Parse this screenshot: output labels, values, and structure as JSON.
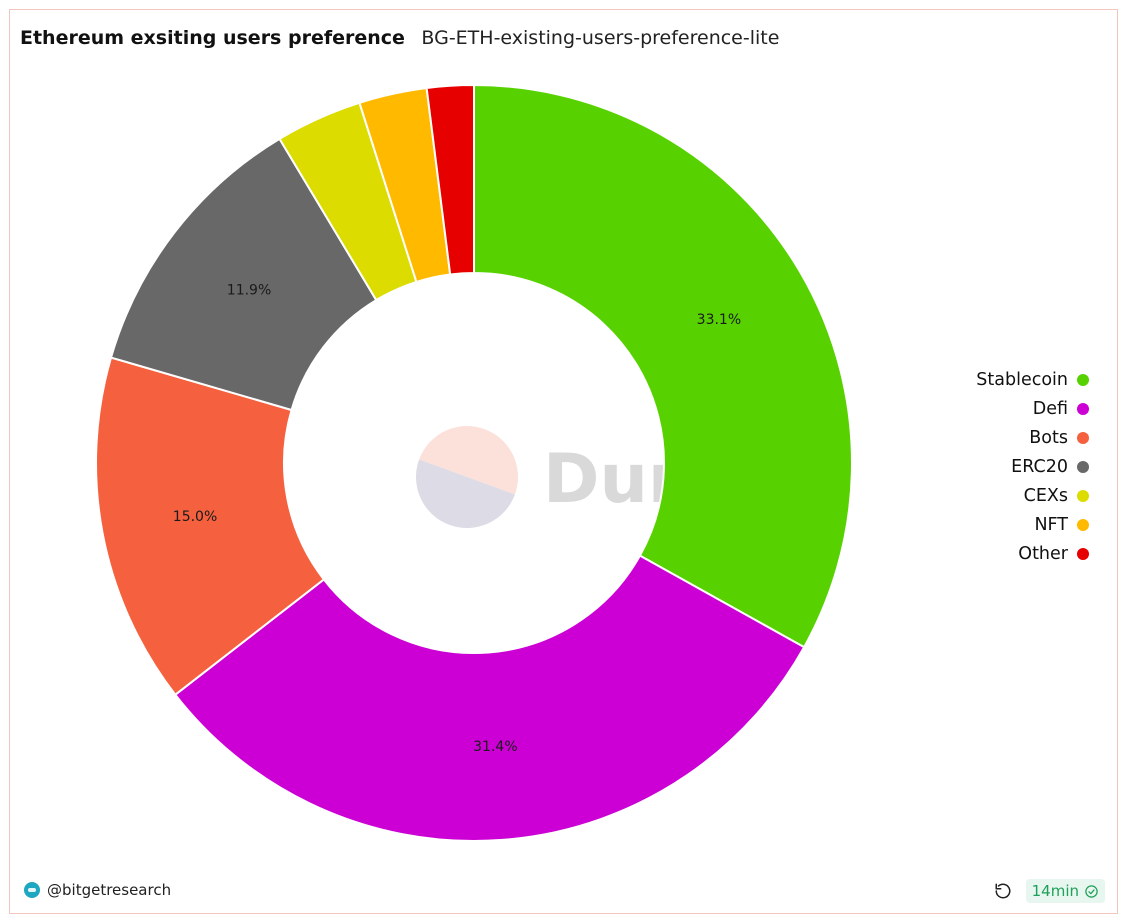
{
  "header": {
    "title": "Ethereum exsiting users preference",
    "subtitle": "BG-ETH-existing-users-preference-lite"
  },
  "chart_data": {
    "type": "pie",
    "donut": true,
    "categories": [
      "Stablecoin",
      "Defi",
      "Bots",
      "ERC20",
      "CEXs",
      "NFT",
      "Other"
    ],
    "values": [
      33.1,
      31.4,
      15.0,
      11.9,
      3.7,
      2.9,
      2.0
    ],
    "labels_shown": [
      "33.1%",
      "31.4%",
      "15.0%",
      "11.9%",
      "",
      "",
      ""
    ],
    "colors": [
      "#57d200",
      "#cc00d4",
      "#f5613e",
      "#686868",
      "#dcdc00",
      "#ffba00",
      "#e60000"
    ],
    "legend_position": "right"
  },
  "watermark": {
    "text": "Dune"
  },
  "footer": {
    "author": "@bitgetresearch",
    "refresh_icon": "refresh-icon",
    "age": "14min",
    "status_icon": "check-circle-icon"
  }
}
